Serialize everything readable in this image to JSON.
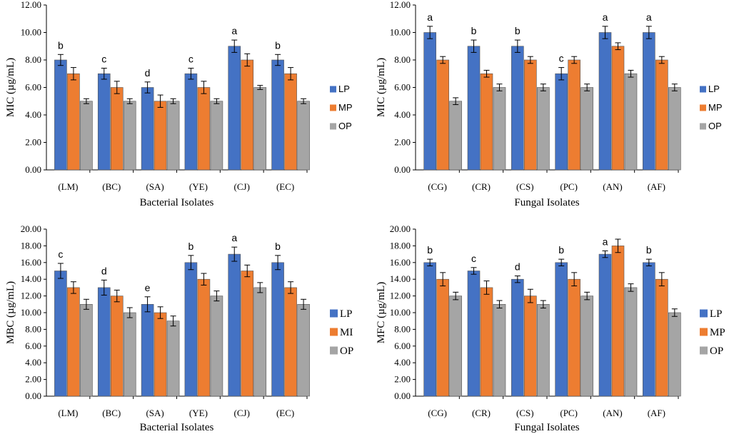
{
  "colors": {
    "LP": "#4472C4",
    "MP": "#ED7D31",
    "OP": "#A5A5A5",
    "bar_border": "#555555",
    "axis": "#000000",
    "error_bar": "#000000"
  },
  "chart_data": [
    {
      "id": "mic-bacterial",
      "type": "bar",
      "title": "",
      "xlabel": "Bacterial Isolates",
      "ylabel": "MIC (µg/mL)",
      "ylim": [
        0,
        12
      ],
      "ytick_step": 2,
      "ytick_labels": [
        "0.00",
        "2.00",
        "4.00",
        "6.00",
        "8.00",
        "10.00",
        "12.00"
      ],
      "categories": [
        "(LM)",
        "(BC)",
        "(SA)",
        "(YE)",
        "(CJ)",
        "(EC)"
      ],
      "series": [
        {
          "name": "LP",
          "legend_label": "LP",
          "values": [
            8,
            7,
            6,
            7,
            9,
            8
          ],
          "errors": [
            0.4,
            0.4,
            0.4,
            0.4,
            0.45,
            0.4
          ]
        },
        {
          "name": "MP",
          "legend_label": "MP",
          "values": [
            7,
            6,
            5,
            6,
            8,
            7
          ],
          "errors": [
            0.45,
            0.45,
            0.45,
            0.45,
            0.45,
            0.45
          ]
        },
        {
          "name": "OP",
          "legend_label": "OP",
          "values": [
            5,
            5,
            5,
            5,
            6,
            5
          ],
          "errors": [
            0.18,
            0.18,
            0.18,
            0.18,
            0.15,
            0.18
          ]
        }
      ],
      "significance_letters": [
        "b",
        "c",
        "d",
        "c",
        "a",
        "b"
      ],
      "legend_style": "sans"
    },
    {
      "id": "mic-fungal",
      "type": "bar",
      "title": "",
      "xlabel": "Fungal Isolates",
      "ylabel": "MIC (µg/mL)",
      "ylim": [
        0,
        12
      ],
      "ytick_step": 2,
      "ytick_labels": [
        "0.00",
        "2.00",
        "4.00",
        "6.00",
        "8.00",
        "10.00",
        "12.00"
      ],
      "categories": [
        "(CG)",
        "(CR)",
        "(CS)",
        "(PC)",
        "(AN)",
        "(AF)"
      ],
      "series": [
        {
          "name": "LP",
          "legend_label": "LP",
          "values": [
            10,
            9,
            9,
            7,
            10,
            10
          ],
          "errors": [
            0.45,
            0.45,
            0.45,
            0.45,
            0.45,
            0.45
          ]
        },
        {
          "name": "MP",
          "legend_label": "MP",
          "values": [
            8,
            7,
            8,
            8,
            9,
            8
          ],
          "errors": [
            0.25,
            0.25,
            0.25,
            0.25,
            0.25,
            0.25
          ]
        },
        {
          "name": "OP",
          "legend_label": "OP",
          "values": [
            5,
            6,
            6,
            6,
            7,
            6
          ],
          "errors": [
            0.25,
            0.25,
            0.25,
            0.25,
            0.25,
            0.25
          ]
        }
      ],
      "significance_letters": [
        "a",
        "b",
        "b",
        "c",
        "a",
        "a"
      ],
      "legend_style": "sans"
    },
    {
      "id": "mbc-bacterial",
      "type": "bar",
      "title": "",
      "xlabel": "Bacterial Isolates",
      "ylabel": "MBC (µg/mL)",
      "ylim": [
        0,
        20
      ],
      "ytick_step": 2,
      "ytick_labels": [
        "0.00",
        "2.00",
        "4.00",
        "6.00",
        "8.00",
        "10.00",
        "12.00",
        "14.00",
        "16.00",
        "18.00",
        "20.00"
      ],
      "categories": [
        "(LM)",
        "(BC)",
        "(SA)",
        "(YE)",
        "(CJ)",
        "(EC)"
      ],
      "series": [
        {
          "name": "LP",
          "legend_label": "LP",
          "values": [
            15,
            13,
            11,
            16,
            17,
            16
          ],
          "errors": [
            0.9,
            0.9,
            0.9,
            0.85,
            0.85,
            0.85
          ]
        },
        {
          "name": "MP",
          "legend_label": "MI",
          "values": [
            13,
            12,
            10,
            14,
            15,
            13
          ],
          "errors": [
            0.7,
            0.7,
            0.7,
            0.7,
            0.7,
            0.7
          ]
        },
        {
          "name": "OP",
          "legend_label": "OP",
          "values": [
            11,
            10,
            9,
            12,
            13,
            11
          ],
          "errors": [
            0.6,
            0.6,
            0.6,
            0.6,
            0.6,
            0.6
          ]
        }
      ],
      "significance_letters": [
        "c",
        "d",
        "e",
        "b",
        "a",
        "b"
      ],
      "legend_style": "serif"
    },
    {
      "id": "mfc-fungal",
      "type": "bar",
      "title": "",
      "xlabel": "Fungal Isolates",
      "ylabel": "MFC (µg/mL)",
      "ylim": [
        0,
        20
      ],
      "ytick_step": 2,
      "ytick_labels": [
        "0.00",
        "2.00",
        "4.00",
        "6.00",
        "8.00",
        "10.00",
        "12.00",
        "14.00",
        "16.00",
        "18.00",
        "20.00"
      ],
      "categories": [
        "(CG)",
        "(CR)",
        "(CS)",
        "(PC)",
        "(AN)",
        "(AF)"
      ],
      "series": [
        {
          "name": "LP",
          "legend_label": "LP",
          "values": [
            16,
            15,
            14,
            16,
            17,
            16
          ],
          "errors": [
            0.4,
            0.4,
            0.4,
            0.4,
            0.4,
            0.4
          ]
        },
        {
          "name": "MP",
          "legend_label": "MP",
          "values": [
            14,
            13,
            12,
            14,
            18,
            14
          ],
          "errors": [
            0.8,
            0.8,
            0.8,
            0.8,
            0.8,
            0.8
          ]
        },
        {
          "name": "OP",
          "legend_label": "OP",
          "values": [
            12,
            11,
            11,
            12,
            13,
            10
          ],
          "errors": [
            0.45,
            0.45,
            0.45,
            0.45,
            0.45,
            0.45
          ]
        }
      ],
      "significance_letters": [
        "b",
        "c",
        "d",
        "b",
        "a",
        "b"
      ],
      "legend_style": "serif"
    }
  ]
}
